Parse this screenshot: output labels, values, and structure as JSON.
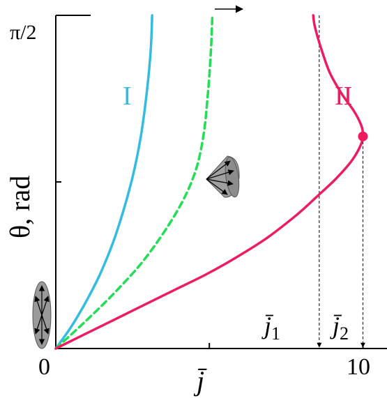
{
  "chart_data": {
    "type": "line",
    "ylabel": "θ, rad",
    "xlabel": "j̄",
    "xlim": [
      0,
      11.0
    ],
    "ylim": [
      0,
      1.5708
    ],
    "x_ticks": [
      {
        "value": 0,
        "label": "0"
      },
      {
        "value": 5.1,
        "label": ""
      },
      {
        "value": 10.2,
        "label": "10"
      }
    ],
    "y_ticks": [
      {
        "value": 0.7854,
        "label": ""
      },
      {
        "value": 1.5708,
        "label": "π/2"
      }
    ],
    "grid": false,
    "series": [
      {
        "name": "I",
        "color": "#33BBE0",
        "style": "solid",
        "x": [
          0,
          0.5,
          1.0,
          1.5,
          2.0,
          2.5,
          2.8,
          3.0,
          3.15,
          3.2
        ],
        "y": [
          0,
          0.1,
          0.22,
          0.36,
          0.54,
          0.78,
          0.98,
          1.18,
          1.4,
          1.5708
        ]
      },
      {
        "name": "",
        "color": "#22DD55",
        "style": "dashed",
        "x": [
          0,
          1.0,
          2.0,
          3.0,
          4.0,
          4.6,
          4.9,
          5.05,
          5.15,
          5.2
        ],
        "y": [
          0,
          0.13,
          0.27,
          0.43,
          0.64,
          0.82,
          1.0,
          1.2,
          1.4,
          1.5708
        ]
      },
      {
        "name": "II",
        "color": "#EE1C5E",
        "style": "solid",
        "x": [
          0,
          1.0,
          2.0,
          3.0,
          4.0,
          5.0,
          6.0,
          7.0,
          8.0,
          8.7,
          9.3,
          9.8,
          10.1,
          10.2,
          10.15,
          9.9,
          9.5,
          9.1,
          8.8,
          8.6,
          8.55
        ],
        "y": [
          0,
          0.07,
          0.14,
          0.21,
          0.28,
          0.35,
          0.43,
          0.52,
          0.63,
          0.72,
          0.8,
          0.88,
          0.95,
          1.0,
          1.05,
          1.12,
          1.2,
          1.3,
          1.42,
          1.52,
          1.5708
        ]
      }
    ],
    "marker": {
      "x": 10.2,
      "y": 1.0,
      "color": "#EE1C5E"
    },
    "annotations": [
      {
        "text": "j̄₁",
        "x": 8.75
      },
      {
        "text": "j̄₂",
        "x": 10.2
      }
    ],
    "labels": {
      "j1_main": "j̄",
      "j1_sub": "1",
      "j2_main": "j̄",
      "j2_sub": "2",
      "x0": "0",
      "x10": "10",
      "ypi": "π/2"
    }
  }
}
